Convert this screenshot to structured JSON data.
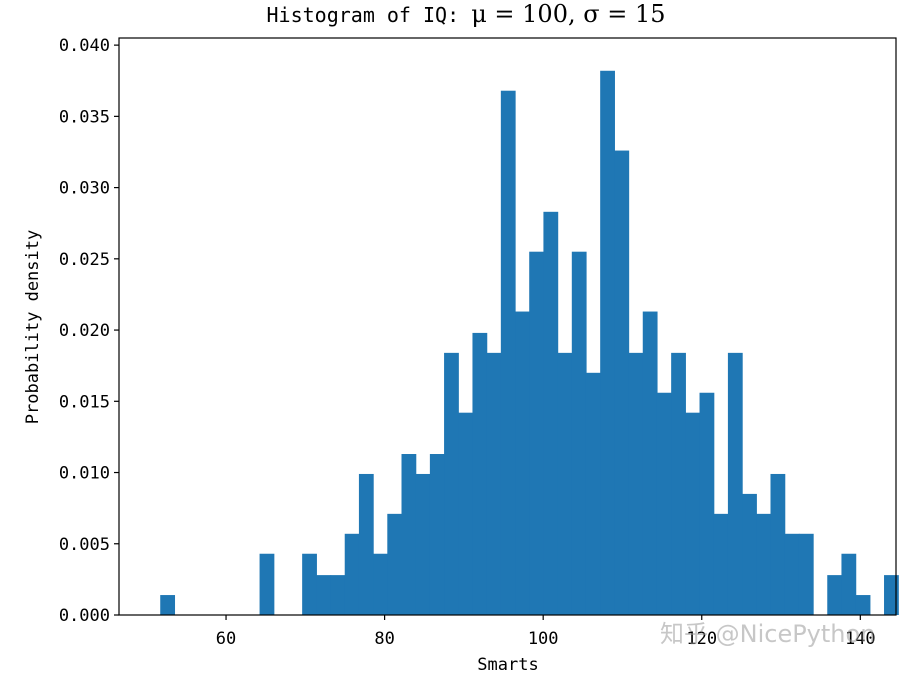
{
  "chart_data": {
    "type": "bar",
    "title": {
      "prefix": "Histogram of IQ: ",
      "math": "μ = 100,  σ = 15"
    },
    "xlabel": "Smarts",
    "ylabel": "Probability density",
    "xlim": [
      46.5,
      144.5
    ],
    "ylim": [
      0,
      0.0405
    ],
    "xticks": [
      60,
      80,
      100,
      120,
      140
    ],
    "xtick_labels": [
      "60",
      "80",
      "100",
      "120",
      "140"
    ],
    "yticks": [
      0,
      0.005,
      0.01,
      0.015,
      0.02,
      0.025,
      0.03,
      0.035,
      0.04
    ],
    "ytick_labels": [
      "0.000",
      "0.005",
      "0.010",
      "0.015",
      "0.020",
      "0.025",
      "0.030",
      "0.035",
      "0.040"
    ],
    "bar_color": "#1f77b4",
    "bins_start": 51.7,
    "bin_width": 1.79,
    "values": [
      0.0014,
      0,
      0,
      0,
      0,
      0,
      0,
      0.0043,
      0,
      0,
      0.0043,
      0.0028,
      0.0028,
      0.0057,
      0.0099,
      0.0043,
      0.0071,
      0.0113,
      0.0099,
      0.0113,
      0.0184,
      0.0142,
      0.0198,
      0.0184,
      0.0368,
      0.0213,
      0.0255,
      0.0283,
      0.0184,
      0.0255,
      0.017,
      0.0382,
      0.0326,
      0.0184,
      0.0213,
      0.0156,
      0.0184,
      0.0142,
      0.0156,
      0.0071,
      0.0184,
      0.0085,
      0.0071,
      0.0099,
      0.0057,
      0.0057,
      0,
      0.0028,
      0.0043,
      0.0014,
      0,
      0.0028
    ],
    "grid": false,
    "legend": "none"
  },
  "watermark": "知乎 @NicePython"
}
